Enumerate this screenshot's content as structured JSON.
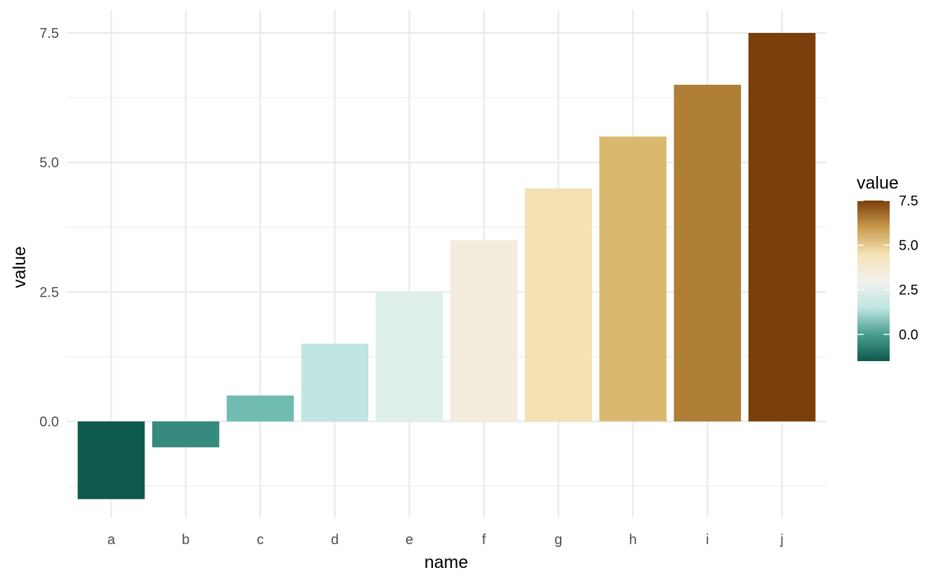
{
  "chart_data": {
    "type": "bar",
    "title": "",
    "xlabel": "name",
    "ylabel": "value",
    "categories": [
      "a",
      "b",
      "c",
      "d",
      "e",
      "f",
      "g",
      "h",
      "i",
      "j"
    ],
    "values": [
      -1.5,
      -0.5,
      0.5,
      1.5,
      2.5,
      3.5,
      4.5,
      5.5,
      6.5,
      7.5
    ],
    "colors": [
      "#0f5a4e",
      "#378a7e",
      "#70bcb1",
      "#bfe6e1",
      "#deefec",
      "#f4ecdc",
      "#f4e2b4",
      "#dbb870",
      "#af7e37",
      "#7a3f0a"
    ],
    "ylim": [
      -1.8,
      7.7
    ],
    "yticks": [
      0.0,
      2.5,
      5.0,
      7.5
    ],
    "ytick_labels": [
      "0.0",
      "2.5",
      "5.0",
      "7.5"
    ],
    "grid": true,
    "legend": {
      "title": "value",
      "placement": "right",
      "type": "colorbar",
      "range": [
        -1.5,
        7.5
      ],
      "ticks": [
        0.0,
        2.5,
        5.0,
        7.5
      ],
      "tick_labels": [
        "0.0",
        "2.5",
        "5.0",
        "7.5"
      ],
      "gradient": [
        {
          "value": -1.5,
          "color": "#0f5a4e"
        },
        {
          "value": 0.0,
          "color": "#4a9d91"
        },
        {
          "value": 1.5,
          "color": "#bfe6e1"
        },
        {
          "value": 3.0,
          "color": "#f3f1ee"
        },
        {
          "value": 4.5,
          "color": "#f4e2b4"
        },
        {
          "value": 6.0,
          "color": "#c99a4e"
        },
        {
          "value": 7.5,
          "color": "#7a3f0a"
        }
      ]
    }
  }
}
